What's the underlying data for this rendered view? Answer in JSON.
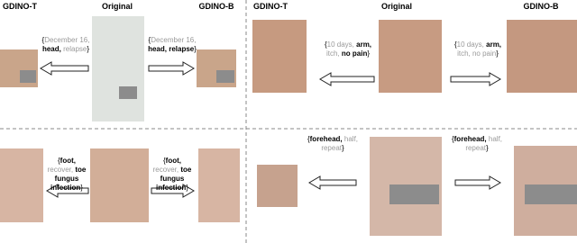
{
  "panels": [
    {
      "headers": [
        "GDINO-T",
        "Original",
        "GDINO-B"
      ],
      "left_query": [
        {
          "text": "{",
          "style": "plain"
        },
        {
          "text": "December 16,",
          "style": "gray"
        },
        {
          "text": "head,",
          "style": "bold"
        },
        {
          "text": "relapse",
          "style": "gray"
        },
        {
          "text": "}",
          "style": "plain"
        }
      ],
      "right_query": [
        {
          "text": "{",
          "style": "plain"
        },
        {
          "text": "December 16,",
          "style": "gray"
        },
        {
          "text": "head,",
          "style": "bold"
        },
        {
          "text": "relapse",
          "style": "bold"
        },
        {
          "text": "}",
          "style": "plain"
        }
      ]
    },
    {
      "headers": [
        "GDINO-T",
        "Original",
        "GDINO-B"
      ],
      "left_query": [
        {
          "text": "{",
          "style": "plain"
        },
        {
          "text": "10 days,",
          "style": "gray"
        },
        {
          "text": "arm,",
          "style": "bold"
        },
        {
          "text": "itch,",
          "style": "gray"
        },
        {
          "text": "no pain",
          "style": "bold"
        },
        {
          "text": "}",
          "style": "plain"
        }
      ],
      "right_query": [
        {
          "text": "{",
          "style": "plain"
        },
        {
          "text": "10 days,",
          "style": "gray"
        },
        {
          "text": "arm,",
          "style": "bold"
        },
        {
          "text": "itch,",
          "style": "gray"
        },
        {
          "text": "no pain",
          "style": "gray"
        },
        {
          "text": "}",
          "style": "plain"
        }
      ]
    },
    {
      "left_query": [
        {
          "text": "{",
          "style": "plain"
        },
        {
          "text": "foot,",
          "style": "bold"
        },
        {
          "text": "recover,",
          "style": "gray"
        },
        {
          "text": "toe fungus infection",
          "style": "bold"
        },
        {
          "text": "}",
          "style": "plain"
        }
      ],
      "right_query": [
        {
          "text": "{",
          "style": "plain"
        },
        {
          "text": "foot,",
          "style": "bold"
        },
        {
          "text": "recover,",
          "style": "gray"
        },
        {
          "text": "toe fungus infection",
          "style": "bold"
        },
        {
          "text": "}",
          "style": "plain"
        }
      ]
    },
    {
      "left_query": [
        {
          "text": "{",
          "style": "plain"
        },
        {
          "text": "forehead,",
          "style": "bold"
        },
        {
          "text": "half,",
          "style": "gray"
        },
        {
          "text": "repeat",
          "style": "gray"
        },
        {
          "text": "}",
          "style": "plain"
        }
      ],
      "right_query": [
        {
          "text": "{",
          "style": "plain"
        },
        {
          "text": "forehead,",
          "style": "bold"
        },
        {
          "text": "half,",
          "style": "gray"
        },
        {
          "text": "repeat",
          "style": "gray"
        },
        {
          "text": "}",
          "style": "plain"
        }
      ]
    }
  ]
}
